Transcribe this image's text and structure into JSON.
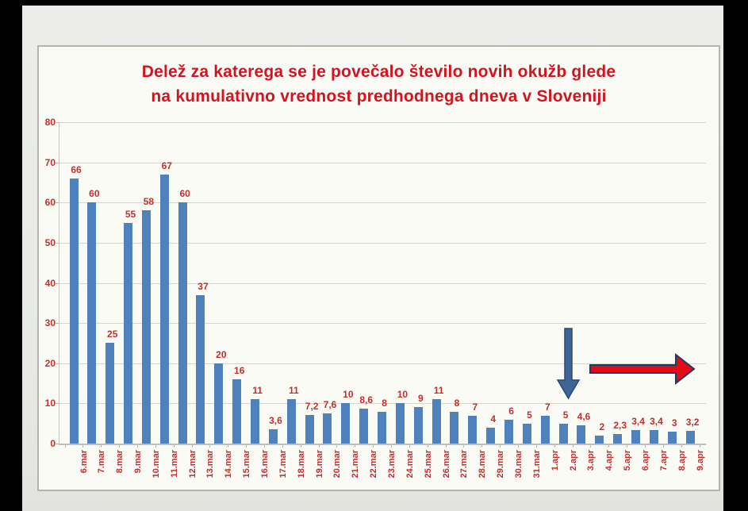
{
  "chart_data": {
    "type": "bar",
    "title_line1": "Delež za katerega se je povečalo število novih okužb glede",
    "title_line2": "na kumulativno vrednost predhodnega dneva v Sloveniji",
    "categories": [
      "6.mar",
      "7.mar",
      "8.mar",
      "9.mar",
      "10.mar",
      "11.mar",
      "12.mar",
      "13.mar",
      "14.mar",
      "15.mar",
      "16.mar",
      "17.mar",
      "18.mar",
      "19.mar",
      "20.mar",
      "21.mar",
      "22.mar",
      "23.mar",
      "24.mar",
      "25.mar",
      "26.mar",
      "27.mar",
      "28.mar",
      "29.mar",
      "30.mar",
      "31.mar",
      "1.apr",
      "2.apr",
      "3.apr",
      "4.apr",
      "5.apr",
      "6.apr",
      "7.apr",
      "8.apr",
      "9.apr"
    ],
    "values": [
      66,
      60,
      25,
      55,
      58,
      67,
      60,
      37,
      20,
      16,
      11,
      3.6,
      11,
      7.2,
      7.6,
      10,
      8.6,
      8,
      10,
      9,
      11,
      8,
      7,
      4,
      6,
      5,
      7,
      5,
      4.6,
      2,
      2.3,
      3.4,
      3.4,
      3,
      3.2
    ],
    "value_labels": [
      "66",
      "60",
      "25",
      "55",
      "58",
      "67",
      "60",
      "37",
      "20",
      "16",
      "11",
      "3,6",
      "11",
      "7,2",
      "7,6",
      "10",
      "8,6",
      "8",
      "10",
      "9",
      "11",
      "8",
      "7",
      "4",
      "6",
      "5",
      "7",
      "5",
      "4,6",
      "2",
      "2,3",
      "3,4",
      "3,4",
      "3",
      "3,2"
    ],
    "xlabel": "",
    "ylabel": "",
    "ylim": [
      0,
      80
    ],
    "yticks": [
      0,
      10,
      20,
      30,
      40,
      50,
      60,
      70,
      80
    ],
    "grid": true,
    "legend": "none",
    "colors": {
      "bar": "#4f81bd",
      "value_label": "#c22f2f",
      "axis_label": "#c22f2f",
      "title": "#d31420",
      "down_arrow_fill": "#3f6497",
      "down_arrow_stroke": "#2a4a75",
      "right_arrow_fill": "#e30b16",
      "right_arrow_stroke": "#1f3864"
    },
    "annotations": [
      {
        "type": "arrow",
        "direction": "down",
        "points_at": "2.apr"
      },
      {
        "type": "arrow",
        "direction": "right",
        "spans": "3.apr to 9.apr"
      }
    ]
  }
}
